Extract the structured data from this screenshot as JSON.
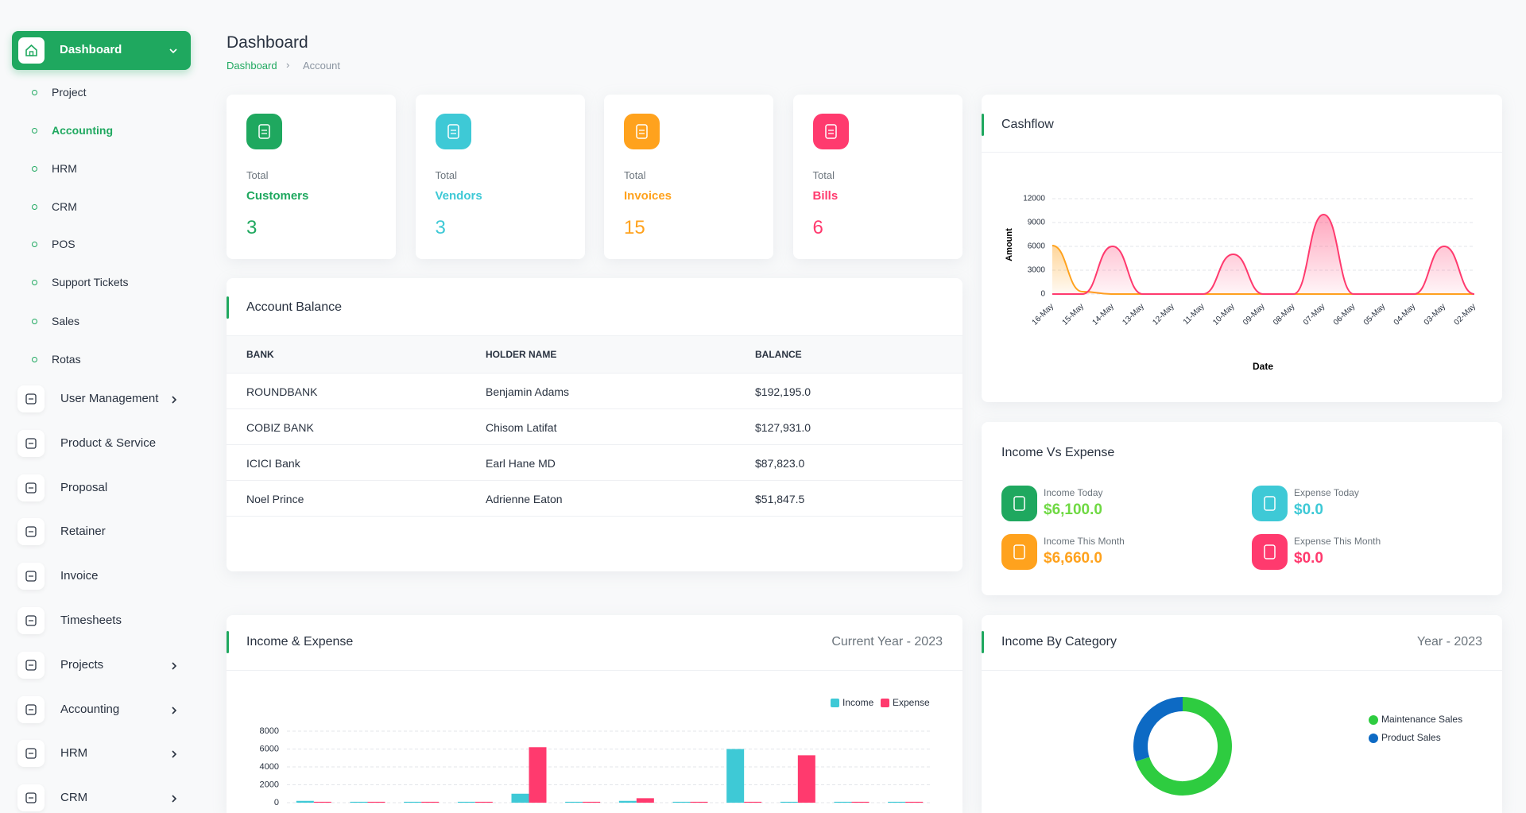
{
  "sidebar": {
    "active": "Dashboard",
    "sub_items": [
      "Project",
      "Accounting",
      "HRM",
      "CRM",
      "POS",
      "Support Tickets",
      "Sales",
      "Rotas"
    ],
    "items": [
      "User Management",
      "Product & Service",
      "Proposal",
      "Retainer",
      "Invoice",
      "Timesheets",
      "Projects",
      "Accounting",
      "HRM",
      "CRM"
    ]
  },
  "header": {
    "title": "Dashboard",
    "breadcrumb": [
      "Dashboard",
      "Account"
    ]
  },
  "stats": [
    {
      "label": "Total",
      "name": "Customers",
      "value": 3
    },
    {
      "label": "Total",
      "name": "Vendors",
      "value": 3
    },
    {
      "label": "Total",
      "name": "Invoices",
      "value": 15
    },
    {
      "label": "Total",
      "name": "Bills",
      "value": 6
    }
  ],
  "account_balance": {
    "title": "Account Balance",
    "columns": [
      "BANK",
      "HOLDER NAME",
      "BALANCE"
    ],
    "rows": [
      [
        "ROUNDBANK",
        "Benjamin Adams",
        "$192,195.0"
      ],
      [
        "COBIZ BANK",
        "Chisom Latifat",
        "$127,931.0"
      ],
      [
        "ICICI Bank",
        "Earl Hane MD",
        "$87,823.0"
      ],
      [
        "Noel Prince",
        "Adrienne Eaton",
        "$51,847.5"
      ]
    ]
  },
  "income_vs_expense": {
    "title": "Income Vs Expense",
    "items": [
      {
        "label": "Income Today",
        "value": "$6,100.0"
      },
      {
        "label": "Expense Today",
        "value": "$0.0"
      },
      {
        "label": "Income This Month",
        "value": "$6,660.0"
      },
      {
        "label": "Expense This Month",
        "value": "$0.0"
      }
    ]
  },
  "chart_data": [
    {
      "type": "area",
      "title": "Cashflow",
      "xlabel": "Date",
      "ylabel": "Amount",
      "categories": [
        "16-May",
        "15-May",
        "14-May",
        "13-May",
        "12-May",
        "11-May",
        "10-May",
        "09-May",
        "08-May",
        "07-May",
        "06-May",
        "05-May",
        "04-May",
        "03-May",
        "02-May"
      ],
      "series": [
        {
          "color": "#ffa21d",
          "values": [
            6100,
            300,
            0,
            0,
            0,
            0,
            0,
            0,
            0,
            0,
            0,
            0,
            0,
            0,
            0
          ]
        },
        {
          "color": "#ff3a6e",
          "values": [
            0,
            0,
            6000,
            0,
            0,
            0,
            5000,
            0,
            0,
            10000,
            0,
            0,
            0,
            6000,
            0
          ]
        }
      ],
      "ylim": [
        0,
        12000
      ],
      "yticks": [
        0,
        3000,
        6000,
        9000,
        12000
      ],
      "grid": true
    },
    {
      "type": "bar",
      "title": "Income & Expense",
      "subtitle": "Current Year - 2023",
      "categories": [
        null,
        null,
        null,
        null,
        null,
        null,
        null,
        null,
        null,
        null,
        null,
        null
      ],
      "series": [
        {
          "name": "Income",
          "color": "#3ec9d6",
          "values": [
            200,
            100,
            100,
            100,
            1000,
            100,
            200,
            100,
            6000,
            100,
            100,
            100
          ]
        },
        {
          "name": "Expense",
          "color": "#ff3a6e",
          "values": [
            100,
            100,
            100,
            100,
            6200,
            100,
            500,
            100,
            100,
            5300,
            100,
            100
          ]
        }
      ],
      "ylim": [
        0,
        8000
      ],
      "yticks": [
        0,
        2000,
        4000,
        6000,
        8000
      ],
      "grid": true,
      "legend": "top-right"
    },
    {
      "type": "donut",
      "title": "Income By Category",
      "subtitle": "Year - 2023",
      "categories": [
        "Maintenance Sales",
        "Product Sales"
      ],
      "values": [
        70,
        30
      ],
      "colors": [
        "#2ecc40",
        "#0d6ac4"
      ],
      "legend": "right"
    }
  ]
}
